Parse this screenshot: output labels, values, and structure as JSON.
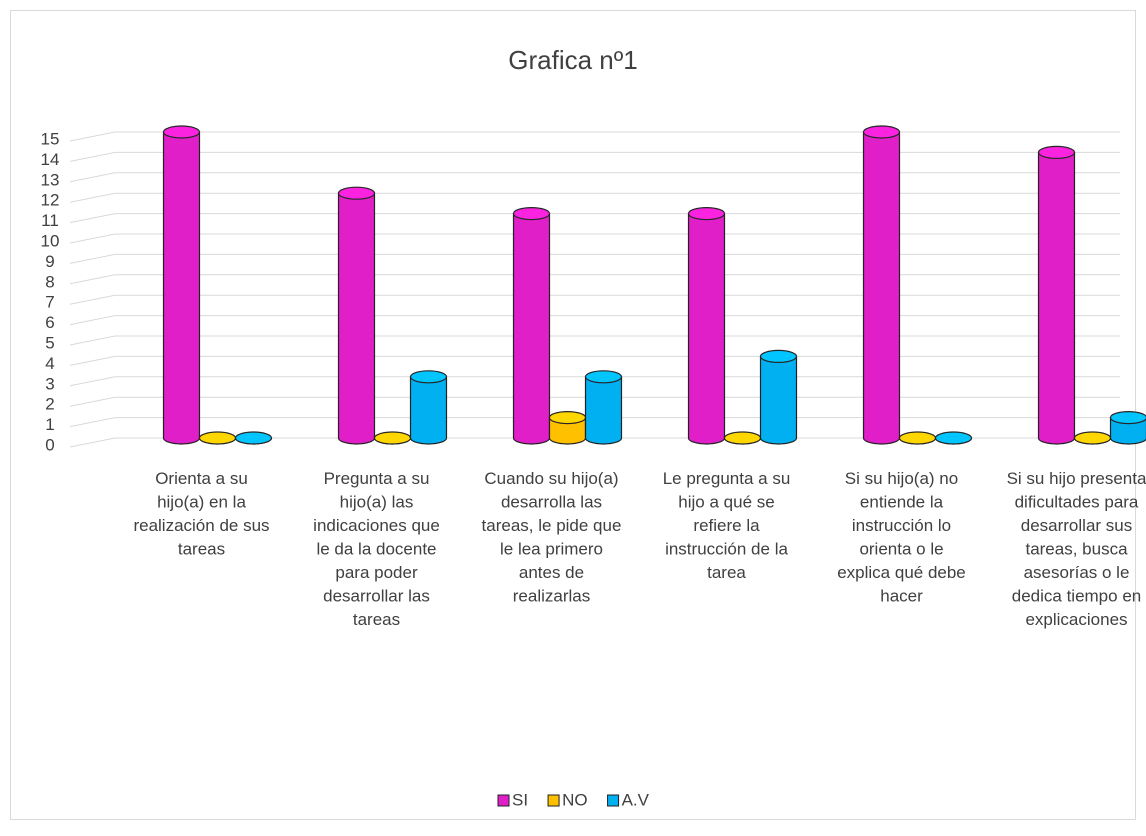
{
  "chart_data": {
    "type": "bar3d",
    "title": "Grafica nº1",
    "categories": [
      "Orienta a su hijo(a) en la realización de sus tareas",
      "Pregunta a su hijo(a) las indicaciones que le da la docente para poder desarrollar las tareas",
      "Cuando su hijo(a) desarrolla las tareas, le pide que le lea primero antes de realizarlas",
      "Le pregunta a su hijo a qué se refiere la instrucción de la tarea",
      "Si su hijo(a) no entiende la instrucción lo orienta o le explica qué debe hacer",
      "Si su hijo presenta dificultades para desarrollar sus tareas, busca asesorías o le dedica tiempo en explicaciones"
    ],
    "series": [
      {
        "name": "SI",
        "color": "#e01fc8",
        "values": [
          15,
          12,
          11,
          11,
          15,
          14
        ]
      },
      {
        "name": "NO",
        "color": "#ffc000",
        "values": [
          0,
          0,
          1,
          0,
          0,
          0
        ]
      },
      {
        "name": "A.V",
        "color": "#00b0f0",
        "values": [
          0,
          3,
          3,
          4,
          0,
          1
        ]
      }
    ],
    "ylim": [
      0,
      15
    ],
    "yticks": [
      0,
      1,
      2,
      3,
      4,
      5,
      6,
      7,
      8,
      9,
      10,
      11,
      12,
      13,
      14,
      15
    ],
    "grid": true,
    "legend": "bottom"
  }
}
